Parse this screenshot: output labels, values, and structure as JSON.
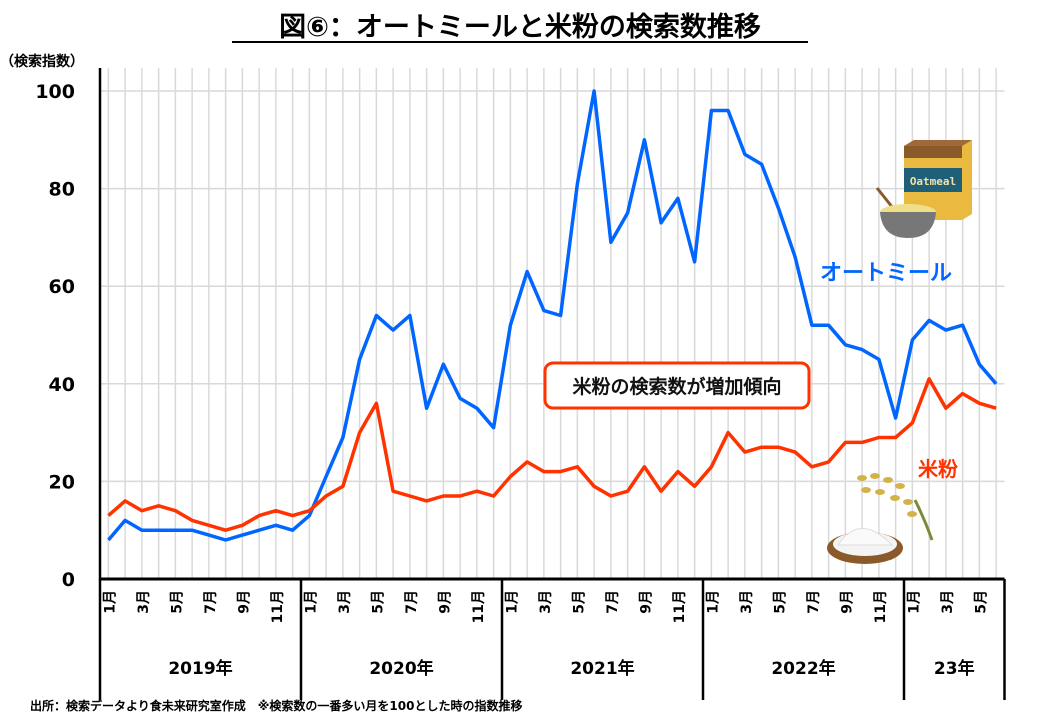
{
  "chart_data": {
    "type": "line",
    "title": "図⑥：オートミールと米粉の検索数推移",
    "ylabel": "（検索指数）",
    "ylim": [
      0,
      100
    ],
    "yticks": [
      0,
      20,
      40,
      60,
      80,
      100
    ],
    "grid": true,
    "month_labels": [
      "1月",
      "3月",
      "5月",
      "7月",
      "9月",
      "11月"
    ],
    "years": [
      {
        "label": "2019年",
        "months": 12
      },
      {
        "label": "2020年",
        "months": 12
      },
      {
        "label": "2021年",
        "months": 12
      },
      {
        "label": "2022年",
        "months": 12
      },
      {
        "label": "23年",
        "months": 6
      }
    ],
    "series": [
      {
        "name": "オートミール",
        "color": "#0066ff",
        "values": [
          8,
          12,
          10,
          10,
          10,
          10,
          9,
          8,
          9,
          10,
          11,
          10,
          13,
          21,
          29,
          45,
          54,
          51,
          54,
          35,
          44,
          37,
          35,
          31,
          52,
          63,
          55,
          54,
          81,
          100,
          69,
          75,
          90,
          73,
          78,
          65,
          96,
          96,
          87,
          85,
          76,
          66,
          52,
          52,
          48,
          47,
          45,
          33,
          49,
          53,
          51,
          52,
          44,
          40
        ]
      },
      {
        "name": "米粉",
        "color": "#ff3300",
        "values": [
          13,
          16,
          14,
          15,
          14,
          12,
          11,
          10,
          11,
          13,
          14,
          13,
          14,
          17,
          19,
          30,
          36,
          18,
          17,
          16,
          17,
          17,
          18,
          17,
          21,
          24,
          22,
          22,
          23,
          19,
          17,
          18,
          23,
          18,
          22,
          19,
          23,
          30,
          26,
          27,
          27,
          26,
          23,
          24,
          28,
          28,
          29,
          29,
          32,
          41,
          35,
          38,
          36,
          35
        ]
      }
    ],
    "annotation": "米粉の検索数が増加傾向",
    "source": "出所：検索データより食未来研究室作成　※検索数の一番多い月を100とした時の指数推移"
  },
  "illustration": {
    "box_text": "Oatmeal"
  }
}
